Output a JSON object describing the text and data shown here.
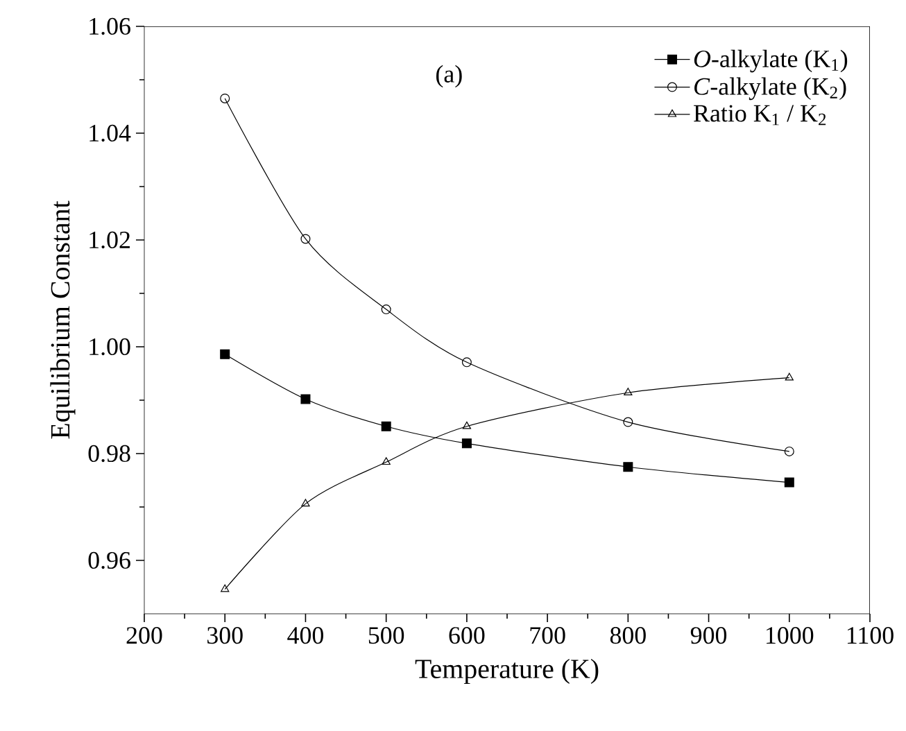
{
  "chart_data": {
    "type": "line",
    "xlabel": "Temperature (K)",
    "ylabel": "Equilibrium Constant",
    "annotations": [
      "(a)"
    ],
    "x": [
      300,
      400,
      500,
      600,
      800,
      1000
    ],
    "series": [
      {
        "name": "*O*-alkylate (K$_{1}$)",
        "color": "#000000",
        "marker": "square",
        "values": [
          0.9986,
          0.9902,
          0.9851,
          0.9819,
          0.9775,
          0.9746
        ]
      },
      {
        "name": "*C*-alkylate (K$_{2}$)",
        "color": "#000000",
        "marker": "circle",
        "values": [
          1.0465,
          1.0202,
          1.007,
          0.9971,
          0.9859,
          0.9804
        ]
      },
      {
        "name": "Ratio K$_{1}$ / K$_{2}$",
        "color": "#000000",
        "marker": "triangle",
        "values": [
          0.9546,
          0.9706,
          0.9784,
          0.9851,
          0.9914,
          0.9942
        ]
      }
    ],
    "xlim": [
      200,
      1100
    ],
    "xticks": [
      200,
      300,
      400,
      500,
      600,
      700,
      800,
      900,
      1000,
      1100
    ],
    "ylim": [
      0.95,
      1.06
    ],
    "yticks": [
      0.96,
      0.98,
      {
        "value": 1,
        "label": "1.00"
      },
      1.02,
      1.04,
      1.06
    ],
    "grid": false,
    "legend": "top right",
    "line_style": "solid"
  }
}
